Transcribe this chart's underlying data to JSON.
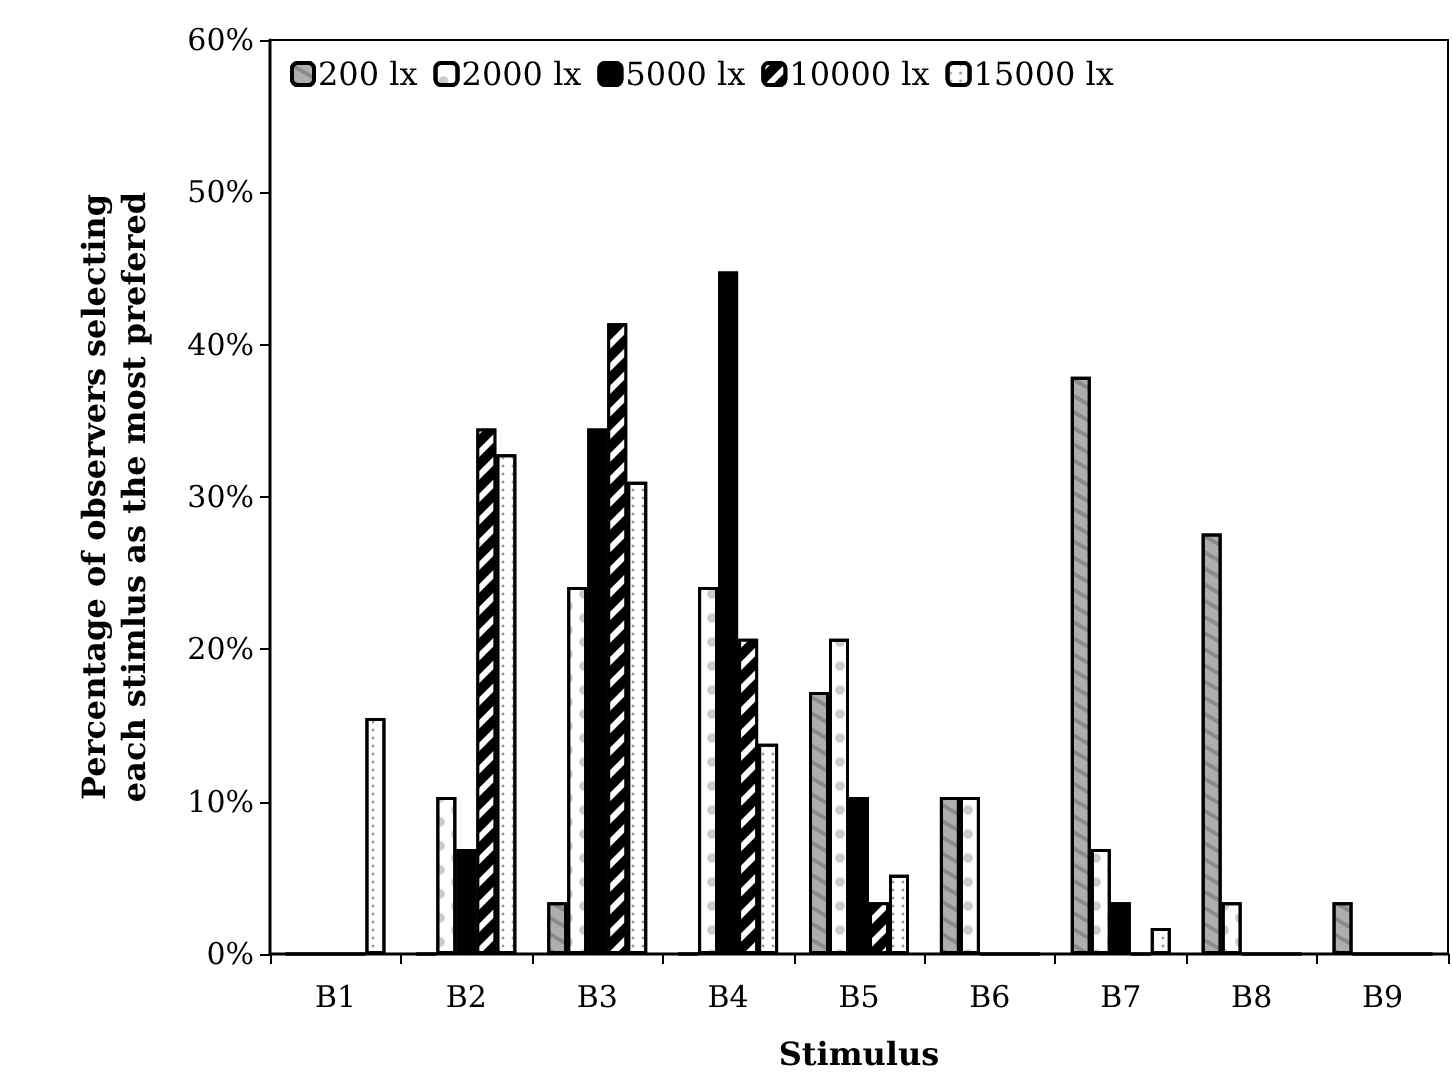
{
  "chart_data": {
    "type": "bar",
    "xlabel": "Stimulus",
    "ylabel": "Percentage of observers selecting\neach stimlus as the most prefered",
    "categories": [
      "B1",
      "B2",
      "B3",
      "B4",
      "B5",
      "B6",
      "B7",
      "B8",
      "B9"
    ],
    "series": [
      {
        "name": "200 lx",
        "color": "#b0adad",
        "values": [
          0,
          0,
          3.4,
          0,
          17.2,
          10.3,
          37.9,
          27.6,
          3.4
        ]
      },
      {
        "name": "2000 lx",
        "color": "#ffffff",
        "values": [
          0,
          10.3,
          24.1,
          24.1,
          20.7,
          10.3,
          6.9,
          3.4,
          0
        ]
      },
      {
        "name": "5000 lx",
        "color": "#000000",
        "values": [
          0,
          6.9,
          34.5,
          44.8,
          10.3,
          0,
          3.4,
          0,
          0
        ]
      },
      {
        "name": "10000 lx",
        "color": "#000000",
        "values": [
          0,
          34.5,
          41.4,
          20.7,
          3.4,
          0,
          0,
          0,
          0
        ]
      },
      {
        "name": "15000 lx",
        "color": "#ffffff",
        "values": [
          15.5,
          32.8,
          31.0,
          13.8,
          5.2,
          0,
          1.7,
          0,
          0
        ]
      }
    ],
    "ylim": [
      0,
      60
    ],
    "yticks": [
      {
        "value": 0,
        "label": "0%"
      },
      {
        "value": 10,
        "label": "10%"
      },
      {
        "value": 20,
        "label": "20%"
      },
      {
        "value": 30,
        "label": "30%"
      },
      {
        "value": 40,
        "label": "40%"
      },
      {
        "value": 50,
        "label": "50%"
      },
      {
        "value": 60,
        "label": "60%"
      }
    ],
    "grid": false,
    "legend": "top"
  }
}
